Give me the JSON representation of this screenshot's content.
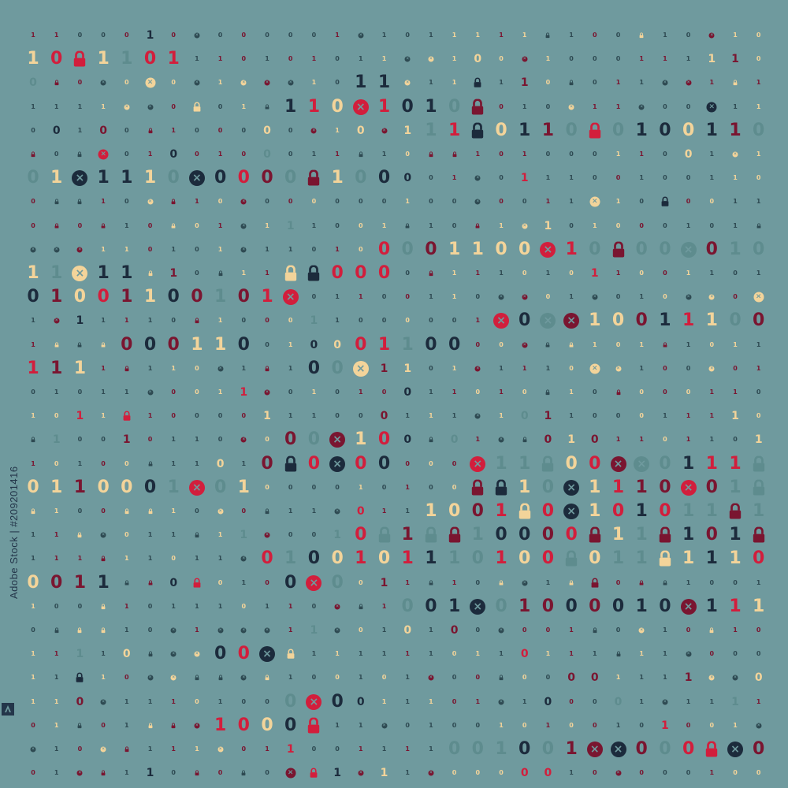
{
  "watermark": {
    "text": "Adobe Stock | #209201416"
  },
  "palette": {
    "background": "#6f9a9e",
    "cream": "#f3d49a",
    "red": "#d21e3c",
    "maroon": "#7a1530",
    "navy": "#1c2b3c",
    "teal": "#5e8c8e",
    "dim": "#2e4a52"
  },
  "glyph_alphabet": [
    "0",
    "1",
    "x-circle-icon",
    "lock-icon"
  ]
}
